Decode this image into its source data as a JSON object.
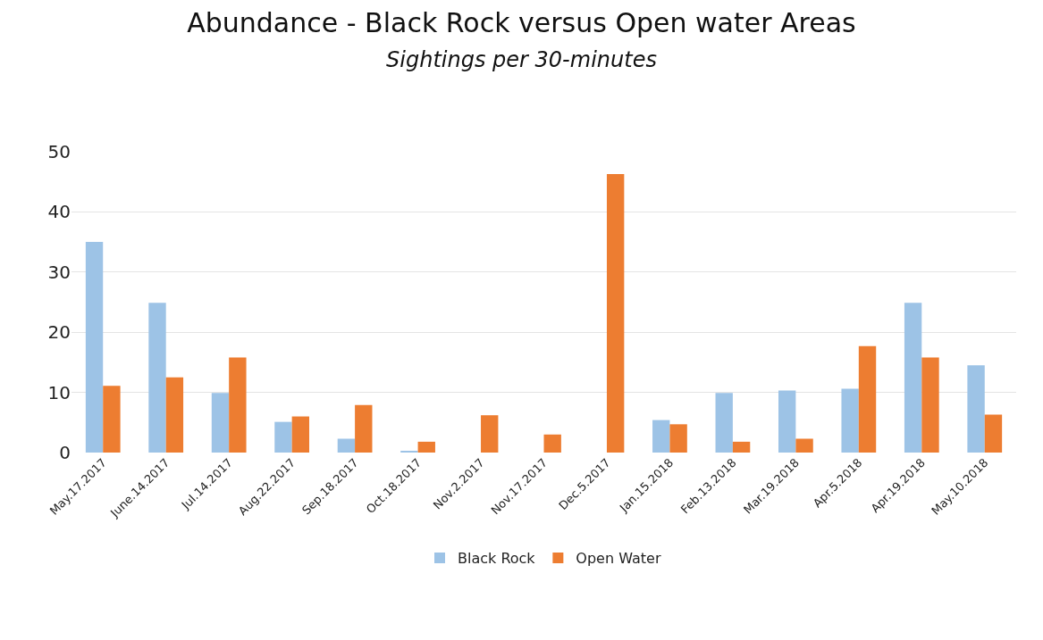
{
  "chart_data": {
    "type": "bar",
    "title": "Abundance - Black Rock versus Open water Areas",
    "subtitle": "Sightings per 30-minutes",
    "categories": [
      "May.17.2017",
      "June.14.2017",
      "Jul.14.2017",
      "Aug.22.2017",
      "Sep.18.2017",
      "Oct.18.2017",
      "Nov.2.2017",
      "Nov.17.2017",
      "Dec.5.2017",
      "Jan.15.2018",
      "Feb.13.2018",
      "Mar.19.2018",
      "Apr.5.2018",
      "Apr.19.2018",
      "May.10.2018"
    ],
    "series": [
      {
        "name": "Black Rock",
        "color": "#9dc3e6",
        "values": [
          35,
          24.9,
          9.9,
          5.1,
          2.3,
          0.2,
          0,
          0,
          0,
          5.4,
          9.9,
          10.3,
          10.6,
          24.9,
          14.5
        ]
      },
      {
        "name": "Open Water",
        "color": "#ed7d31",
        "values": [
          11.1,
          12.5,
          15.8,
          6,
          7.9,
          1.8,
          6.2,
          3,
          46.3,
          4.7,
          1.8,
          2.3,
          17.7,
          15.8,
          6.3
        ]
      }
    ],
    "ylim": [
      0,
      50
    ],
    "yticks": [
      0,
      10,
      20,
      30,
      40,
      50
    ],
    "grid": "y",
    "legend": "bottom"
  }
}
